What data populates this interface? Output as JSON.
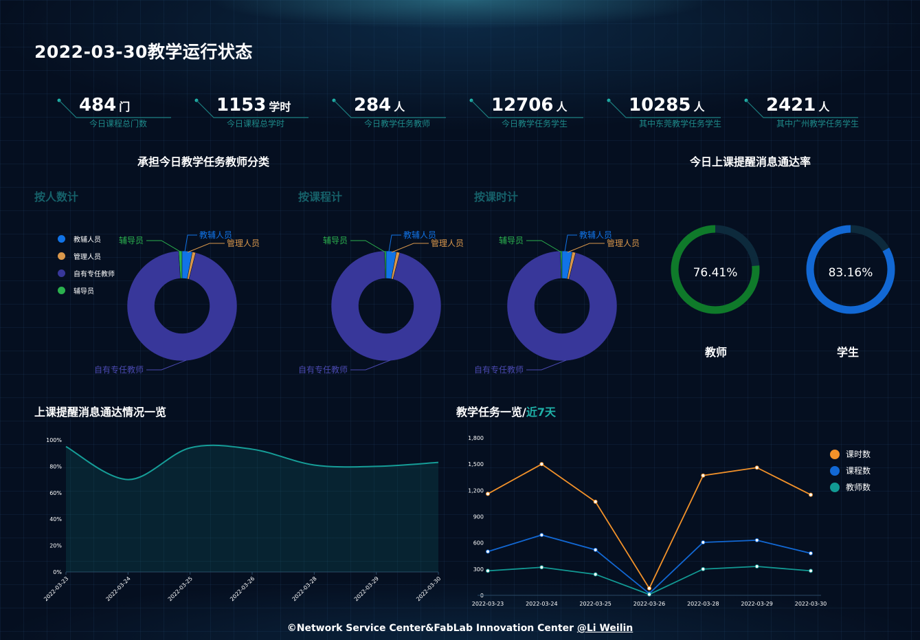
{
  "page_title": "2022-03-30教学运行状态",
  "stats": [
    {
      "value": "484",
      "unit": "门",
      "label": "今日课程总门数"
    },
    {
      "value": "1153",
      "unit": "学时",
      "label": "今日课程总学时"
    },
    {
      "value": "284",
      "unit": "人",
      "label": "今日教学任务教师"
    },
    {
      "value": "12706",
      "unit": "人",
      "label": "今日教学任务学生"
    },
    {
      "value": "10285",
      "unit": "人",
      "label": "其中东莞教学任务学生"
    },
    {
      "value": "2421",
      "unit": "人",
      "label": "其中广州教学任务学生"
    }
  ],
  "teacher_section": {
    "title": "承担今日教学任务教师分类",
    "subtitles": [
      "按人数计",
      "按课程计",
      "按课时计"
    ],
    "legend": [
      {
        "name": "教辅人员",
        "color": "#1173e6"
      },
      {
        "name": "管理人员",
        "color": "#d9974b"
      },
      {
        "name": "自有专任教师",
        "color": "#38379a"
      },
      {
        "name": "辅导员",
        "color": "#2bb14e"
      }
    ]
  },
  "rate_section": {
    "title": "今日上课提醒消息通达率",
    "items": [
      {
        "label": "教师",
        "value": "76.41%",
        "fraction": 0.7641,
        "color": "#0f7a2a"
      },
      {
        "label": "学生",
        "value": "83.16%",
        "fraction": 0.8316,
        "color": "#1268d4"
      }
    ]
  },
  "line_section_title": "上课提醒消息通达情况一览",
  "task_section": {
    "title_main": "教学任务一览/",
    "title_accent": "近7天"
  },
  "footer": {
    "text": "©Network Service Center&FabLab Innovation Center ",
    "author": "@Li Weilin"
  },
  "chart_data": [
    {
      "type": "pie",
      "subtitle": "按人数计",
      "categories": [
        "教辅人员",
        "管理人员",
        "自有专任教师",
        "辅导员"
      ],
      "values": [
        3,
        1,
        95,
        1
      ]
    },
    {
      "type": "pie",
      "subtitle": "按课程计",
      "categories": [
        "教辅人员",
        "管理人员",
        "自有专任教师",
        "辅导员"
      ],
      "values": [
        3,
        1,
        95.5,
        0.5
      ]
    },
    {
      "type": "pie",
      "subtitle": "按课时计",
      "categories": [
        "教辅人员",
        "管理人员",
        "自有专任教师",
        "辅导员"
      ],
      "values": [
        3,
        1,
        95.5,
        0.5
      ]
    },
    {
      "type": "area",
      "title": "上课提醒消息通达情况一览",
      "x": [
        "2022-03-23",
        "2022-03-24",
        "2022-03-25",
        "2022-03-26",
        "2022-03-28",
        "2022-03-29",
        "2022-03-30"
      ],
      "values": [
        95,
        70,
        94,
        93,
        81,
        80,
        83
      ],
      "y_ticks": [
        "0%",
        "20%",
        "40%",
        "60%",
        "80%",
        "100%"
      ],
      "ylim": [
        0,
        100
      ]
    },
    {
      "type": "line",
      "title": "教学任务一览/近7天",
      "x": [
        "2022-03-23",
        "2022-03-24",
        "2022-03-25",
        "2022-03-26",
        "2022-03-28",
        "2022-03-29",
        "2022-03-30"
      ],
      "y_ticks": [
        "0",
        "300",
        "600",
        "900",
        "1,200",
        "1,500",
        "1,800"
      ],
      "ylim": [
        0,
        1800
      ],
      "legend_position": "top-right",
      "series": [
        {
          "name": "课时数",
          "color": "#f3922a",
          "values": [
            1160,
            1500,
            1070,
            80,
            1370,
            1460,
            1150
          ]
        },
        {
          "name": "课程数",
          "color": "#1268d4",
          "values": [
            500,
            690,
            520,
            20,
            605,
            630,
            480
          ]
        },
        {
          "name": "教师数",
          "color": "#129a94",
          "values": [
            280,
            320,
            240,
            10,
            300,
            330,
            280
          ]
        }
      ]
    }
  ]
}
